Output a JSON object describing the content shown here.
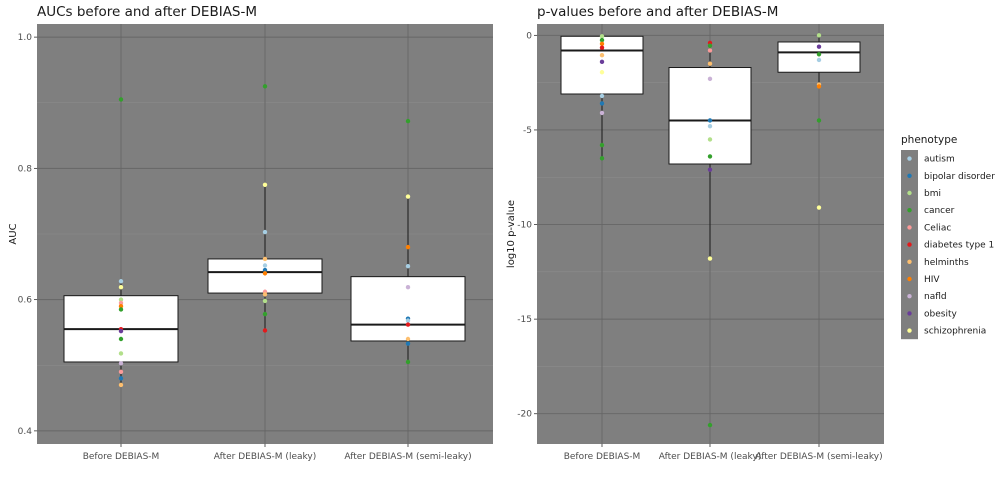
{
  "chart_data": [
    {
      "type": "box",
      "title": "AUCs before and after DEBIAS-M",
      "xlabel": "",
      "ylabel": "AUC",
      "ylim": [
        0.38,
        1.02
      ],
      "yticks": [
        "0.4",
        "0.6",
        "0.8",
        "1.0"
      ],
      "ytick_values": [
        0.4,
        0.6,
        0.8,
        1.0
      ],
      "grid": true,
      "panel_background": "#7f7f7f",
      "categories": [
        "Before DEBIAS-M",
        "After DEBIAS-M (leaky)",
        "After DEBIAS-M (semi-leaky)"
      ],
      "boxes": [
        {
          "whisker_low": 0.47,
          "q1": 0.505,
          "median": 0.555,
          "q3": 0.606,
          "whisker_high": 0.628
        },
        {
          "whisker_low": 0.553,
          "q1": 0.61,
          "median": 0.642,
          "q3": 0.662,
          "whisker_high": 0.775
        },
        {
          "whisker_low": 0.505,
          "q1": 0.537,
          "median": 0.562,
          "q3": 0.635,
          "whisker_high": 0.757
        }
      ],
      "points": [
        {
          "category": 0,
          "phenotype": "cancer",
          "value": 0.905
        },
        {
          "category": 0,
          "phenotype": "autism",
          "value": 0.628
        },
        {
          "category": 0,
          "phenotype": "schizophrenia",
          "value": 0.619
        },
        {
          "category": 0,
          "phenotype": "bmi",
          "value": 0.6
        },
        {
          "category": 0,
          "phenotype": "Celiac",
          "value": 0.595
        },
        {
          "category": 0,
          "phenotype": "HIV",
          "value": 0.59
        },
        {
          "category": 0,
          "phenotype": "cancer",
          "value": 0.585
        },
        {
          "category": 0,
          "phenotype": "diabetes type 1",
          "value": 0.555
        },
        {
          "category": 0,
          "phenotype": "obesity",
          "value": 0.552
        },
        {
          "category": 0,
          "phenotype": "cancer",
          "value": 0.54
        },
        {
          "category": 0,
          "phenotype": "bmi",
          "value": 0.518
        },
        {
          "category": 0,
          "phenotype": "nafld",
          "value": 0.503
        },
        {
          "category": 0,
          "phenotype": "Celiac",
          "value": 0.49
        },
        {
          "category": 0,
          "phenotype": "bipolar disorder",
          "value": 0.48
        },
        {
          "category": 0,
          "phenotype": "helminths",
          "value": 0.47
        },
        {
          "category": 1,
          "phenotype": "cancer",
          "value": 0.925
        },
        {
          "category": 1,
          "phenotype": "schizophrenia",
          "value": 0.775
        },
        {
          "category": 1,
          "phenotype": "autism",
          "value": 0.703
        },
        {
          "category": 1,
          "phenotype": "helminths",
          "value": 0.662
        },
        {
          "category": 1,
          "phenotype": "autism",
          "value": 0.652
        },
        {
          "category": 1,
          "phenotype": "bipolar disorder",
          "value": 0.645
        },
        {
          "category": 1,
          "phenotype": "HIV",
          "value": 0.64
        },
        {
          "category": 1,
          "phenotype": "Celiac",
          "value": 0.612
        },
        {
          "category": 1,
          "phenotype": "helminths",
          "value": 0.608
        },
        {
          "category": 1,
          "phenotype": "bmi",
          "value": 0.598
        },
        {
          "category": 1,
          "phenotype": "cancer",
          "value": 0.578
        },
        {
          "category": 1,
          "phenotype": "diabetes type 1",
          "value": 0.553
        },
        {
          "category": 2,
          "phenotype": "cancer",
          "value": 0.872
        },
        {
          "category": 2,
          "phenotype": "schizophrenia",
          "value": 0.757
        },
        {
          "category": 2,
          "phenotype": "HIV",
          "value": 0.68
        },
        {
          "category": 2,
          "phenotype": "autism",
          "value": 0.651
        },
        {
          "category": 2,
          "phenotype": "nafld",
          "value": 0.619
        },
        {
          "category": 2,
          "phenotype": "bipolar disorder",
          "value": 0.571
        },
        {
          "category": 2,
          "phenotype": "autism",
          "value": 0.568
        },
        {
          "category": 2,
          "phenotype": "diabetes type 1",
          "value": 0.562
        },
        {
          "category": 2,
          "phenotype": "helminths",
          "value": 0.54
        },
        {
          "category": 2,
          "phenotype": "bipolar disorder",
          "value": 0.533
        },
        {
          "category": 2,
          "phenotype": "cancer",
          "value": 0.505
        }
      ]
    },
    {
      "type": "box",
      "title": "p-values before and after DEBIAS-M",
      "xlabel": "",
      "ylabel": "log10 p-value",
      "ylim": [
        -21.6,
        0.6
      ],
      "yticks": [
        "0",
        "-5",
        "-10",
        "-15",
        "-20"
      ],
      "ytick_values": [
        0,
        -5,
        -10,
        -15,
        -20
      ],
      "grid": true,
      "panel_background": "#7f7f7f",
      "categories": [
        "Before DEBIAS-M",
        "After DEBIAS-M (leaky)",
        "After DEBIAS-M (semi-leaky)"
      ],
      "boxes": [
        {
          "whisker_low": -6.5,
          "q1": -3.1,
          "median": -0.8,
          "q3": -0.05,
          "whisker_high": -0.05
        },
        {
          "whisker_low": -11.8,
          "q1": -6.8,
          "median": -4.5,
          "q3": -1.7,
          "whisker_high": -0.4
        },
        {
          "whisker_low": -2.7,
          "q1": -1.95,
          "median": -0.9,
          "q3": -0.35,
          "whisker_high": 0.0
        }
      ],
      "points": [
        {
          "category": 0,
          "phenotype": "bmi",
          "value": -0.05
        },
        {
          "category": 0,
          "phenotype": "cancer",
          "value": -0.25
        },
        {
          "category": 0,
          "phenotype": "HIV",
          "value": -0.45
        },
        {
          "category": 0,
          "phenotype": "diabetes type 1",
          "value": -0.65
        },
        {
          "category": 0,
          "phenotype": "helminths",
          "value": -1.05
        },
        {
          "category": 0,
          "phenotype": "obesity",
          "value": -1.4
        },
        {
          "category": 0,
          "phenotype": "schizophrenia",
          "value": -1.95
        },
        {
          "category": 0,
          "phenotype": "autism",
          "value": -3.2
        },
        {
          "category": 0,
          "phenotype": "bipolar disorder",
          "value": -3.6
        },
        {
          "category": 0,
          "phenotype": "nafld",
          "value": -4.1
        },
        {
          "category": 0,
          "phenotype": "cancer",
          "value": -5.8
        },
        {
          "category": 0,
          "phenotype": "cancer",
          "value": -6.5
        },
        {
          "category": 1,
          "phenotype": "diabetes type 1",
          "value": -0.4
        },
        {
          "category": 1,
          "phenotype": "cancer",
          "value": -0.55
        },
        {
          "category": 1,
          "phenotype": "Celiac",
          "value": -0.8
        },
        {
          "category": 1,
          "phenotype": "helminths",
          "value": -1.5
        },
        {
          "category": 1,
          "phenotype": "nafld",
          "value": -2.3
        },
        {
          "category": 1,
          "phenotype": "bipolar disorder",
          "value": -4.5
        },
        {
          "category": 1,
          "phenotype": "autism",
          "value": -4.8
        },
        {
          "category": 1,
          "phenotype": "bmi",
          "value": -5.5
        },
        {
          "category": 1,
          "phenotype": "cancer",
          "value": -6.4
        },
        {
          "category": 1,
          "phenotype": "obesity",
          "value": -7.1
        },
        {
          "category": 1,
          "phenotype": "schizophrenia",
          "value": -11.8
        },
        {
          "category": 1,
          "phenotype": "cancer",
          "value": -20.6
        },
        {
          "category": 2,
          "phenotype": "bmi",
          "value": 0.0
        },
        {
          "category": 2,
          "phenotype": "obesity",
          "value": -0.6
        },
        {
          "category": 2,
          "phenotype": "cancer",
          "value": -1.0
        },
        {
          "category": 2,
          "phenotype": "autism",
          "value": -1.3
        },
        {
          "category": 2,
          "phenotype": "helminths",
          "value": -2.6
        },
        {
          "category": 2,
          "phenotype": "HIV",
          "value": -2.7
        },
        {
          "category": 2,
          "phenotype": "cancer",
          "value": -4.5
        },
        {
          "category": 2,
          "phenotype": "schizophrenia",
          "value": -9.1
        }
      ]
    }
  ],
  "legend": {
    "title": "phenotype",
    "placement": "right",
    "items": [
      {
        "label": "autism",
        "color": "#a6cee3"
      },
      {
        "label": "bipolar disorder",
        "color": "#1f78b4"
      },
      {
        "label": "bmi",
        "color": "#b2df8a"
      },
      {
        "label": "cancer",
        "color": "#33a02c"
      },
      {
        "label": "Celiac",
        "color": "#fb9a99"
      },
      {
        "label": "diabetes type 1",
        "color": "#e31a1c"
      },
      {
        "label": "helminths",
        "color": "#fdbf6f"
      },
      {
        "label": "HIV",
        "color": "#ff7f00"
      },
      {
        "label": "nafld",
        "color": "#cab2d6"
      },
      {
        "label": "obesity",
        "color": "#6a3d9a"
      },
      {
        "label": "schizophrenia",
        "color": "#ffff99"
      }
    ]
  }
}
